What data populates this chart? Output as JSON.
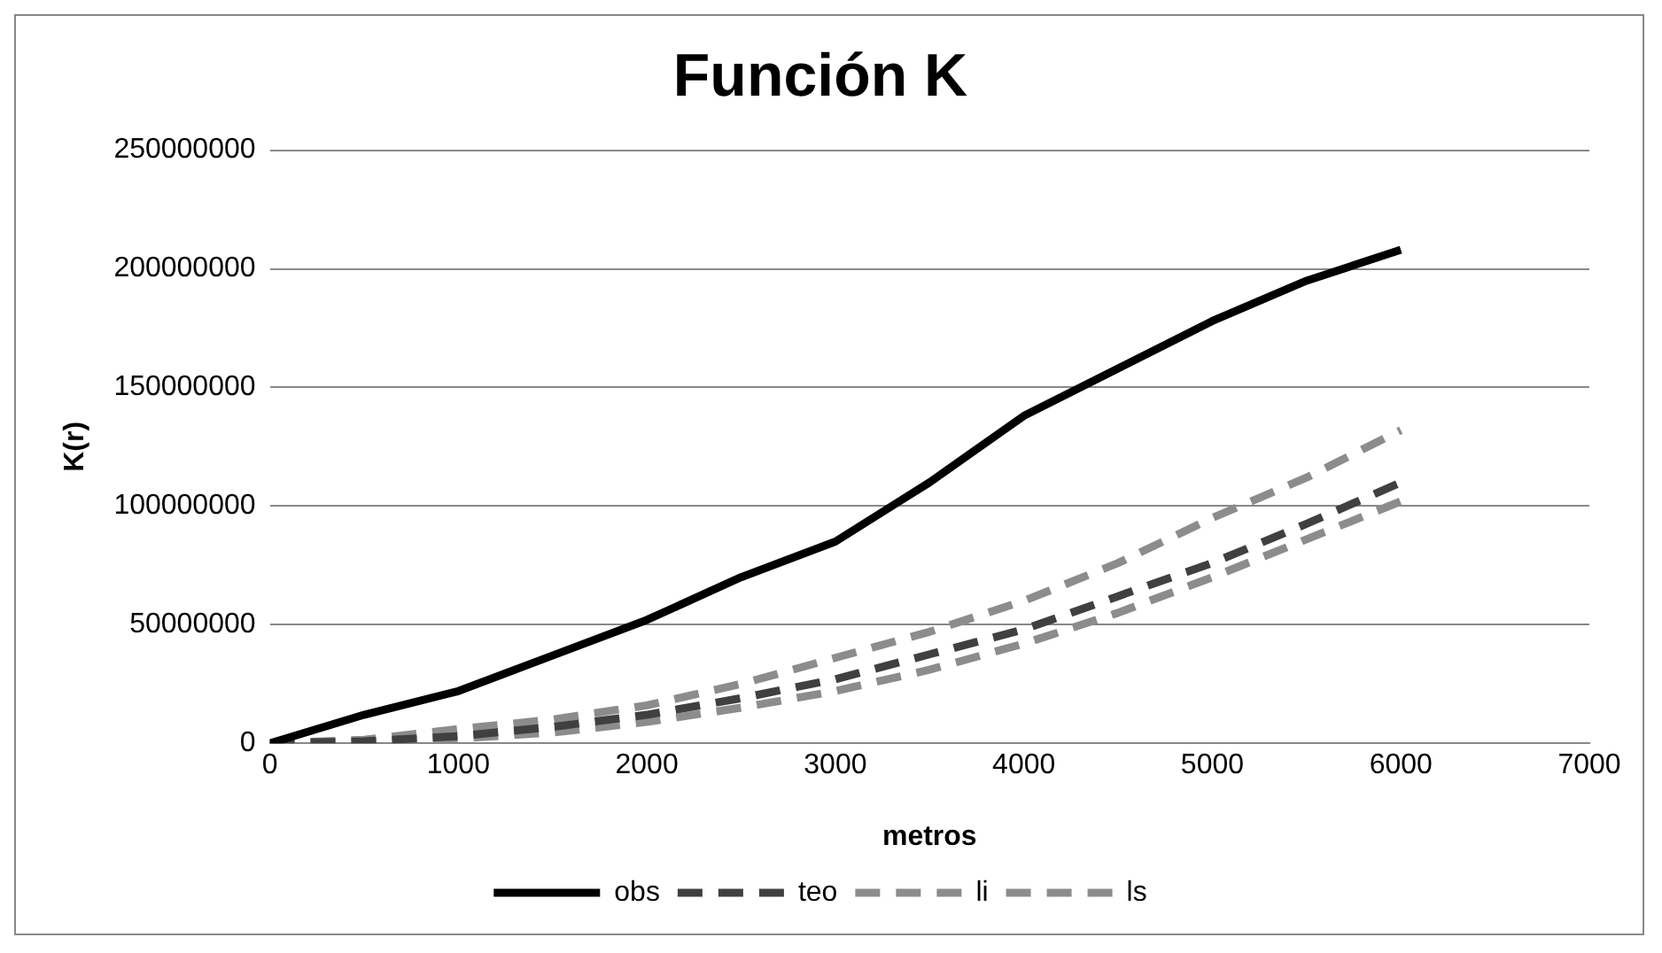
{
  "chart_data": {
    "type": "line",
    "title": "Función K",
    "xlabel": "metros",
    "ylabel": "K(r)",
    "x": [
      0,
      500,
      1000,
      1500,
      2000,
      2500,
      3000,
      3500,
      4000,
      4500,
      5000,
      5500,
      6000
    ],
    "xlim": [
      0,
      7000
    ],
    "xticks": [
      0,
      1000,
      2000,
      3000,
      4000,
      5000,
      6000,
      7000
    ],
    "ylim": [
      0,
      250000000
    ],
    "yticks": [
      0,
      50000000,
      100000000,
      150000000,
      200000000,
      250000000
    ],
    "grid": "y",
    "legend": "bottom",
    "marker": "none",
    "series": [
      {
        "name": "obs",
        "color": "#000000",
        "line_style": "solid",
        "values": [
          0,
          12000000,
          22000000,
          37000000,
          52000000,
          70000000,
          85000000,
          110000000,
          138000000,
          158000000,
          178000000,
          195000000,
          208000000
        ]
      },
      {
        "name": "teo",
        "color": "#404040",
        "line_style": "dashed",
        "values": [
          0,
          800000,
          3000000,
          6900000,
          12000000,
          19000000,
          27000000,
          37500000,
          48000000,
          62000000,
          76000000,
          92500000,
          110000000
        ]
      },
      {
        "name": "li",
        "color": "#8c8c8c",
        "line_style": "dashed",
        "values": [
          0,
          300000,
          2000000,
          4500000,
          9000000,
          15000000,
          22000000,
          31000000,
          42000000,
          55000000,
          70000000,
          86000000,
          102000000
        ]
      },
      {
        "name": "ls",
        "color": "#8c8c8c",
        "line_style": "dashed",
        "values": [
          0,
          1500000,
          6000000,
          10000000,
          16000000,
          25000000,
          36000000,
          47000000,
          60000000,
          76000000,
          95000000,
          112000000,
          132000000
        ]
      }
    ]
  }
}
